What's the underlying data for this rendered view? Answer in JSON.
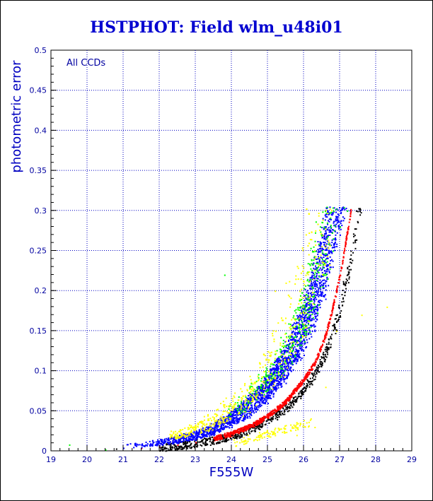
{
  "chart_data": {
    "type": "scatter",
    "title": "HSTPHOT: Field wlm_u48i01",
    "xlabel": "F555W",
    "ylabel": "photometric error",
    "annotation": "All CCDs",
    "xlim": [
      19,
      29
    ],
    "ylim": [
      0,
      0.5
    ],
    "x_ticks": [
      19,
      20,
      21,
      22,
      23,
      24,
      25,
      26,
      27,
      28,
      29
    ],
    "y_ticks": [
      0,
      0.05,
      0.1,
      0.15,
      0.2,
      0.25,
      0.3,
      0.35,
      0.4,
      0.45,
      0.5
    ],
    "x_tick_labels": [
      "19",
      "20",
      "21",
      "22",
      "23",
      "24",
      "25",
      "26",
      "27",
      "28",
      "29"
    ],
    "y_tick_labels": [
      "0",
      "0.05",
      "0.1",
      "0.15",
      "0.2",
      "0.25",
      "0.3",
      "0.35",
      "0.4",
      "0.45",
      "0.5"
    ],
    "grid": true,
    "error_cap": 0.305,
    "series": [
      {
        "color": "#000000",
        "x": [
          20.8,
          21.5,
          22.0,
          22.5,
          23.0,
          23.5,
          24.0,
          24.5,
          25.0,
          25.5,
          26.0,
          26.3,
          26.6,
          26.9,
          27.1,
          27.3,
          27.45
        ],
        "y": [
          0.003,
          0.004,
          0.005,
          0.007,
          0.01,
          0.014,
          0.02,
          0.028,
          0.04,
          0.055,
          0.08,
          0.1,
          0.13,
          0.17,
          0.21,
          0.25,
          0.3
        ]
      },
      {
        "color": "#ff0000",
        "x": [
          21.5,
          22.0,
          22.5,
          23.0,
          23.5,
          24.0,
          24.5,
          25.0,
          25.5,
          26.0,
          26.3,
          26.6,
          26.8,
          27.0,
          27.15,
          27.3
        ],
        "y": [
          0.004,
          0.006,
          0.008,
          0.011,
          0.016,
          0.022,
          0.031,
          0.044,
          0.062,
          0.09,
          0.11,
          0.145,
          0.18,
          0.22,
          0.26,
          0.3
        ]
      },
      {
        "color": "#0000ff",
        "x": [
          21.0,
          21.5,
          22.0,
          22.5,
          23.0,
          23.5,
          24.0,
          24.5,
          25.0,
          25.5,
          26.0,
          26.3,
          26.6,
          26.8,
          27.0,
          27.2
        ],
        "y": [
          0.004,
          0.005,
          0.007,
          0.01,
          0.014,
          0.02,
          0.03,
          0.042,
          0.06,
          0.085,
          0.12,
          0.15,
          0.19,
          0.23,
          0.27,
          0.3
        ]
      },
      {
        "color": "#00ff00",
        "x": [
          19.5,
          20.5,
          23.8,
          24.5,
          25.2,
          25.6,
          26.0,
          26.3,
          26.6,
          26.8,
          27.0,
          27.2
        ],
        "y": [
          0.008,
          0.002,
          0.22,
          0.08,
          0.1,
          0.13,
          0.15,
          0.18,
          0.22,
          0.25,
          0.28,
          0.3
        ]
      },
      {
        "color": "#ffff00",
        "x": [
          22.5,
          23.0,
          23.5,
          24.0,
          24.5,
          25.0,
          25.2,
          25.5,
          25.8,
          26.3,
          26.6,
          26.9,
          27.6,
          28.3
        ],
        "y": [
          0.02,
          0.03,
          0.04,
          0.055,
          0.07,
          0.09,
          0.2,
          0.21,
          0.02,
          0.03,
          0.08,
          0.15,
          0.17,
          0.18
        ]
      }
    ]
  }
}
